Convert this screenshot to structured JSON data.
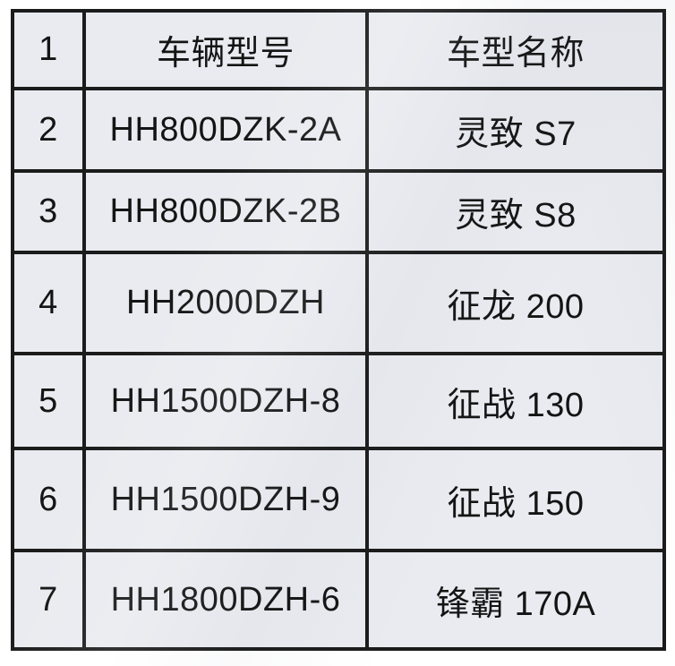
{
  "table": {
    "rows": [
      {
        "num": "1",
        "model": "车辆型号",
        "name": "车型名称"
      },
      {
        "num": "2",
        "model": "HH800DZK-2A",
        "name": "灵致 S7"
      },
      {
        "num": "3",
        "model": "HH800DZK-2B",
        "name": "灵致 S8"
      },
      {
        "num": "4",
        "model": "HH2000DZH",
        "name": "征龙 200"
      },
      {
        "num": "5",
        "model": "HH1500DZH-8",
        "name": "征战 130"
      },
      {
        "num": "6",
        "model": "HH1500DZH-9",
        "name": "征战 150"
      },
      {
        "num": "7",
        "model": "HH1800DZH-6",
        "name": "锋霸 170A"
      }
    ],
    "colors": {
      "cell_background": "#e9ebf0",
      "border": "#1b1b1b",
      "text": "#141414",
      "page_background": "#ffffff"
    }
  }
}
